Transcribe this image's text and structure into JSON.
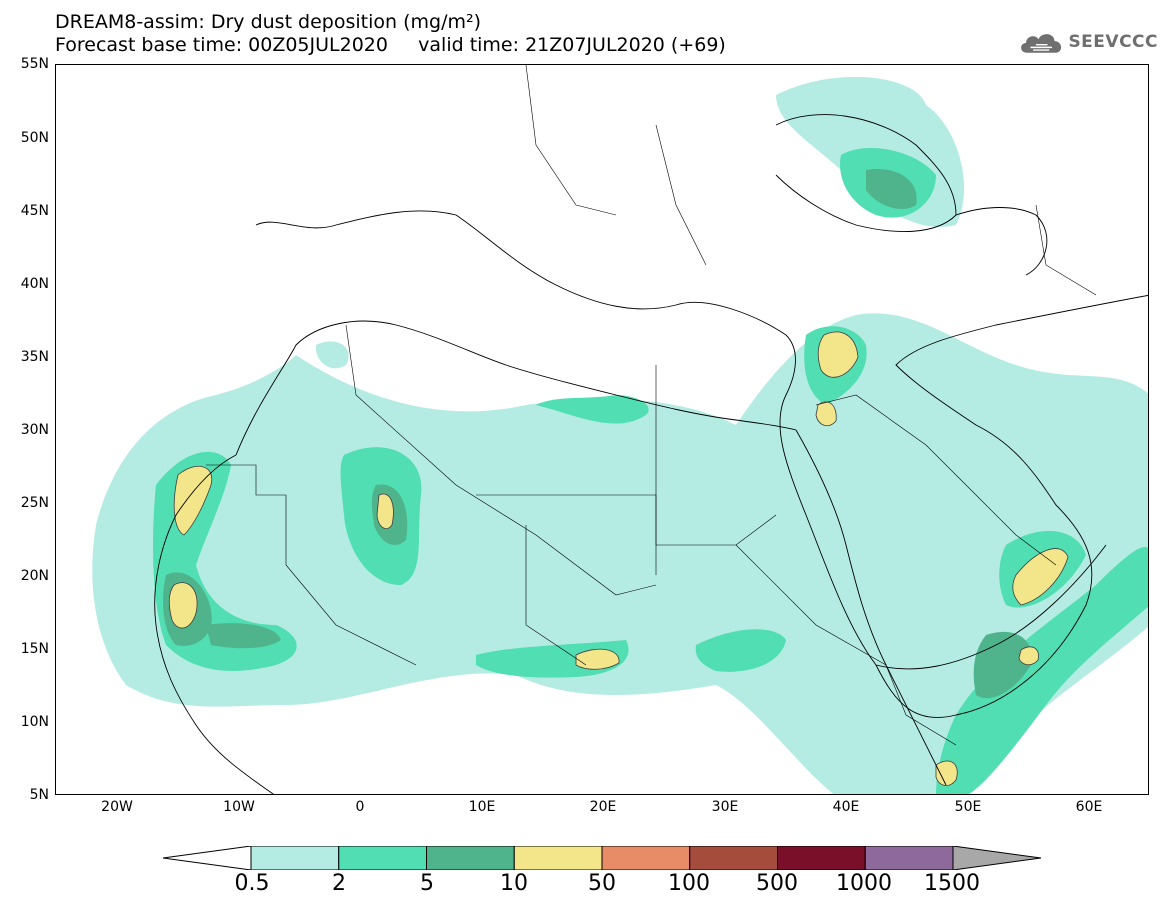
{
  "title": {
    "line1": "DREAM8-assim: Dry dust deposition (mg/m²)",
    "line2": "Forecast base time: 00Z05JUL2020     valid time: 21Z07JUL2020 (+69)"
  },
  "logo": {
    "text": "SEEVCCC",
    "icon": "cloud-icon"
  },
  "map": {
    "projection": "lat-lon",
    "extent": {
      "lon": [
        -25,
        65
      ],
      "lat": [
        5,
        55
      ]
    },
    "lat_ticks": [
      "55N",
      "50N",
      "45N",
      "40N",
      "35N",
      "30N",
      "25N",
      "20N",
      "15N",
      "10N",
      "5N"
    ],
    "lon_ticks": [
      "20W",
      "10W",
      "0",
      "10E",
      "20E",
      "30E",
      "40E",
      "50E",
      "60E"
    ]
  },
  "colorbar": {
    "levels": [
      "0.5",
      "2",
      "5",
      "10",
      "50",
      "100",
      "500",
      "1000",
      "1500"
    ],
    "colors": [
      "#b4ece4",
      "#50deb2",
      "#4fb48c",
      "#f3e68a",
      "#e88c68",
      "#a54c3c",
      "#7a0f2a",
      "#8e6a9c"
    ],
    "under_color": "#ffffff",
    "over_color": "#a8a8a8"
  }
}
